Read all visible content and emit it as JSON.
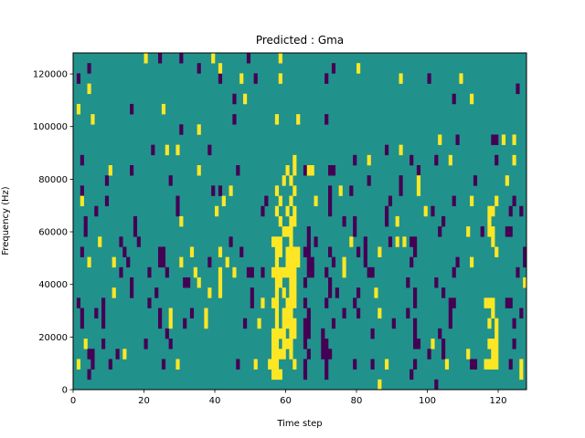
{
  "chart_data": {
    "type": "heatmap",
    "title": "Predicted : Gma",
    "xlabel": "Time step",
    "ylabel": "Frequency (Hz)",
    "xlim": [
      0,
      128
    ],
    "ylim": [
      0,
      128000
    ],
    "xticks": [
      "0",
      "20",
      "40",
      "60",
      "80",
      "100",
      "120"
    ],
    "xtick_values": [
      0,
      20,
      40,
      60,
      80,
      100,
      120
    ],
    "yticks": [
      "0",
      "20000",
      "40000",
      "60000",
      "80000",
      "100000",
      "120000"
    ],
    "ytick_values": [
      0,
      20000,
      40000,
      60000,
      80000,
      100000,
      120000
    ],
    "n_time_steps": 128,
    "n_freq_bins": 33,
    "row_order": "top-to-bottom (highest frequency first)",
    "values": {
      "low": -1,
      "mid": 0,
      "high": 1
    },
    "colors": {
      "low": "#440154",
      "mid": "#21918c",
      "high": "#fde725"
    },
    "default_value": 0,
    "low_cells": [
      [
        24,
        30,
        49
      ],
      [
        4,
        35,
        73
      ],
      [
        1,
        41,
        51,
        71,
        100
      ],
      [
        125
      ],
      [
        45,
        107
      ],
      [
        16
      ],
      [
        45,
        71
      ],
      [
        30
      ],
      [
        108,
        118,
        119
      ],
      [
        22,
        38,
        88
      ],
      [
        2,
        79,
        95,
        102,
        119
      ],
      [
        16,
        46,
        65,
        72,
        73,
        97
      ],
      [
        9,
        27,
        83,
        92,
        113
      ],
      [
        2,
        39,
        41,
        72,
        78,
        92
      ],
      [
        9,
        29,
        54,
        72,
        89,
        107,
        124
      ],
      [
        6,
        29,
        53,
        72,
        88,
        101,
        123,
        126
      ],
      [
        3,
        17,
        76,
        79,
        88,
        104
      ],
      [
        3,
        17,
        66,
        79,
        103,
        115,
        122,
        123
      ],
      [
        13,
        18,
        44,
        66,
        68,
        82,
        89,
        95,
        96
      ],
      [
        2,
        14,
        24,
        25,
        47,
        65,
        66,
        72,
        80,
        82,
        96,
        127
      ],
      [
        15,
        24,
        25,
        38,
        66,
        67,
        73,
        82,
        95,
        108,
        127
      ],
      [
        13,
        21,
        26,
        49,
        50,
        53,
        66,
        67,
        71,
        83,
        84,
        107,
        125
      ],
      [
        16,
        31,
        32,
        65,
        72,
        94,
        102
      ],
      [
        16,
        23,
        50,
        72,
        74,
        80,
        96,
        104
      ],
      [
        1,
        8,
        21,
        50,
        65,
        71,
        79,
        96,
        106,
        107,
        122,
        123
      ],
      [
        2,
        6,
        8,
        24,
        33,
        66,
        76,
        80,
        94,
        106,
        126
      ],
      [
        2,
        8,
        24,
        31,
        48,
        65,
        66,
        73,
        90,
        96,
        106,
        124
      ],
      [
        26,
        65,
        66,
        70,
        84,
        96,
        103
      ],
      [
        8,
        20,
        27,
        65,
        70,
        71,
        96,
        97,
        104,
        124
      ],
      [
        4,
        5,
        12,
        66,
        70,
        71,
        72,
        100,
        104
      ],
      [
        5,
        10,
        25,
        46,
        65,
        71,
        79,
        84,
        96,
        112,
        113,
        123
      ],
      [
        4,
        65,
        71,
        95
      ],
      [
        102
      ]
    ],
    "high_cells": [
      [
        20,
        39,
        58
      ],
      [
        41,
        80
      ],
      [
        47,
        58,
        92,
        109
      ],
      [
        4
      ],
      [
        48,
        112
      ],
      [
        1,
        25
      ],
      [
        5,
        57,
        63
      ],
      [
        35
      ],
      [
        103,
        121,
        124
      ],
      [
        26,
        29,
        92
      ],
      [
        62,
        83,
        106,
        124
      ],
      [
        10,
        35,
        60,
        62,
        66,
        67
      ],
      [
        59,
        61,
        97,
        122
      ],
      [
        44,
        57,
        62,
        75,
        97
      ],
      [
        2,
        42,
        58,
        61,
        68,
        112,
        119
      ],
      [
        40,
        57,
        60,
        62,
        99,
        117,
        118
      ],
      [
        30,
        58,
        61,
        62,
        91,
        117
      ],
      [
        59,
        60,
        61,
        111,
        117,
        118
      ],
      [
        7,
        56,
        57,
        58,
        61,
        78,
        91,
        93,
        118
      ],
      [
        33,
        41,
        57,
        58,
        60,
        61,
        62,
        63,
        86,
        119
      ],
      [
        4,
        11,
        30,
        43,
        57,
        60,
        61,
        62,
        63,
        76,
        112
      ],
      [
        34,
        41,
        45,
        56,
        57,
        58,
        59,
        60,
        61,
        62,
        76
      ],
      [
        35,
        41,
        57,
        58,
        61,
        62,
        127
      ],
      [
        11,
        38,
        41,
        57,
        59,
        61,
        62,
        85
      ],
      [
        53,
        56,
        57,
        60,
        61,
        62,
        116,
        117,
        118
      ],
      [
        27,
        37,
        57,
        59,
        60,
        61,
        86,
        118
      ],
      [
        27,
        37,
        52,
        57,
        59,
        60,
        61,
        62,
        117,
        119
      ],
      [
        56,
        57,
        58,
        59,
        61,
        62,
        119
      ],
      [
        3,
        56,
        57,
        59,
        60,
        61,
        101,
        117,
        118,
        119
      ],
      [
        14,
        56,
        57,
        58,
        59,
        61,
        111,
        118,
        119
      ],
      [
        1,
        29,
        51,
        55,
        56,
        57,
        62,
        88,
        105,
        116,
        117,
        118,
        119,
        126
      ],
      [
        56,
        57,
        58,
        126
      ],
      [
        86
      ]
    ]
  }
}
